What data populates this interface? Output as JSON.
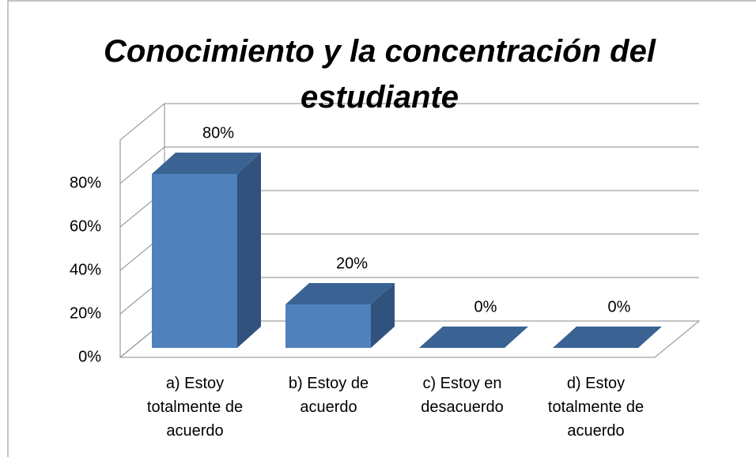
{
  "chart_data": {
    "type": "bar3d",
    "title": "Conocimiento y la concentración del estudiante",
    "categories": [
      "a) Estoy totalmente de acuerdo",
      "b) Estoy de acuerdo",
      "c) Estoy en desacuerdo",
      "d) Estoy totalmente de acuerdo"
    ],
    "values": [
      80,
      20,
      0,
      0
    ],
    "value_labels": [
      "80%",
      "20%",
      "0%",
      "0%"
    ],
    "color": "#4f81bd",
    "ylim": [
      0,
      100
    ],
    "yticks": [
      {
        "value": 0,
        "label": "0%"
      },
      {
        "value": 20,
        "label": "20%"
      },
      {
        "value": 40,
        "label": "40%"
      },
      {
        "value": 60,
        "label": "60%"
      },
      {
        "value": 80,
        "label": "80%"
      }
    ],
    "grid": true
  }
}
